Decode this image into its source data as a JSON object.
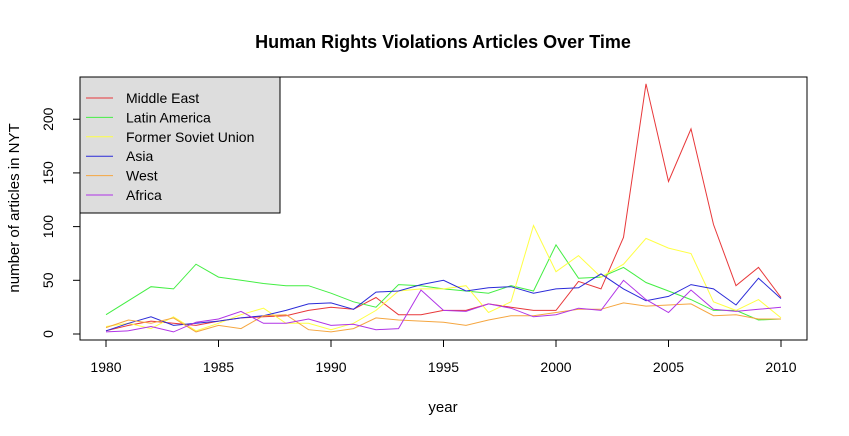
{
  "chart_data": {
    "type": "line",
    "title": "Human Rights Violations Articles Over Time",
    "xlabel": "year",
    "ylabel": "number of articles in NYT",
    "xlim": [
      1980,
      2010
    ],
    "ylim": [
      0,
      230
    ],
    "x_ticks": [
      1980,
      1985,
      1990,
      1995,
      2000,
      2005,
      2010
    ],
    "y_ticks": [
      0,
      50,
      100,
      150,
      200
    ],
    "x": [
      1980,
      1981,
      1982,
      1983,
      1984,
      1985,
      1986,
      1987,
      1988,
      1989,
      1990,
      1991,
      1992,
      1993,
      1994,
      1995,
      1996,
      1997,
      1998,
      1999,
      2000,
      2001,
      2002,
      2003,
      2004,
      2005,
      2006,
      2007,
      2008,
      2009,
      2010
    ],
    "legend_position": "top-left",
    "legend_background": "#dddddd",
    "series": [
      {
        "name": "Middle East",
        "color": "#e8383a",
        "values": [
          3,
          8,
          12,
          10,
          8,
          12,
          15,
          16,
          17,
          22,
          25,
          23,
          34,
          18,
          18,
          22,
          22,
          28,
          25,
          22,
          22,
          49,
          42,
          90,
          233,
          142,
          191,
          102,
          45,
          62,
          34
        ]
      },
      {
        "name": "Latin America",
        "color": "#44ee44",
        "values": [
          18,
          31,
          44,
          42,
          65,
          53,
          50,
          47,
          45,
          45,
          38,
          30,
          25,
          46,
          45,
          42,
          40,
          38,
          45,
          40,
          83,
          52,
          53,
          62,
          48,
          40,
          32,
          22,
          22,
          13,
          14
        ]
      },
      {
        "name": "Former Soviet Union",
        "color": "#ffff44",
        "values": [
          7,
          10,
          5,
          16,
          3,
          10,
          18,
          24,
          10,
          10,
          4,
          10,
          22,
          40,
          42,
          42,
          45,
          20,
          30,
          101,
          58,
          73,
          53,
          65,
          89,
          80,
          75,
          30,
          22,
          32,
          15
        ]
      },
      {
        "name": "Asia",
        "color": "#2b2bd8",
        "values": [
          3,
          10,
          16,
          8,
          10,
          12,
          15,
          17,
          22,
          28,
          29,
          23,
          39,
          40,
          46,
          50,
          40,
          43,
          44,
          38,
          42,
          43,
          56,
          42,
          31,
          35,
          46,
          42,
          27,
          52,
          33
        ]
      },
      {
        "name": "West",
        "color": "#f5a640",
        "values": [
          6,
          13,
          10,
          15,
          2,
          8,
          5,
          17,
          18,
          4,
          2,
          5,
          15,
          13,
          12,
          11,
          8,
          13,
          17,
          17,
          20,
          23,
          23,
          29,
          26,
          27,
          28,
          17,
          18,
          14,
          14
        ]
      },
      {
        "name": "Africa",
        "color": "#b034e6",
        "values": [
          2,
          3,
          7,
          2,
          11,
          14,
          21,
          10,
          10,
          14,
          8,
          9,
          4,
          5,
          41,
          22,
          21,
          28,
          24,
          16,
          18,
          24,
          22,
          50,
          32,
          20,
          41,
          23,
          21,
          23,
          25
        ]
      }
    ]
  }
}
